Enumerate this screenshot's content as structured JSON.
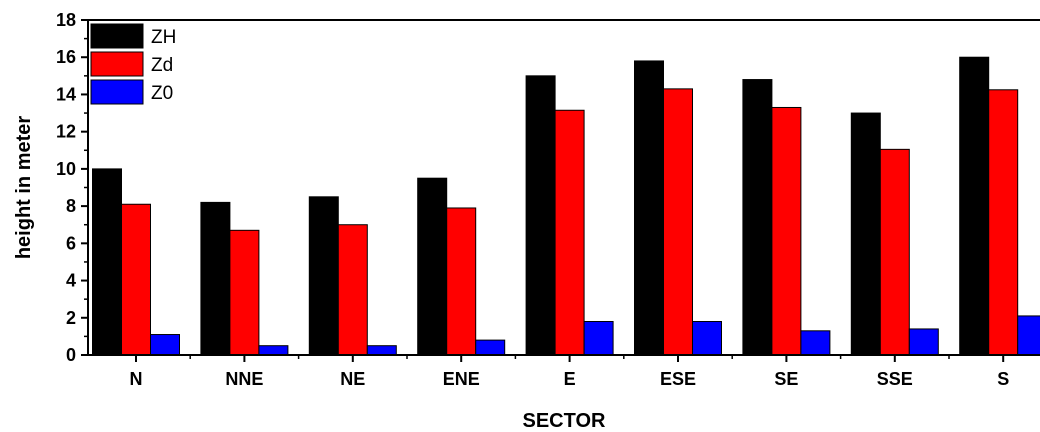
{
  "chart_data": {
    "type": "bar",
    "title": "",
    "xlabel": "SECTOR",
    "ylabel": "height in meter",
    "categories": [
      "N",
      "NNE",
      "NE",
      "ENE",
      "E",
      "ESE",
      "SE",
      "SSE",
      "S"
    ],
    "series": [
      {
        "name": "ZH",
        "color": "#000000",
        "values": [
          10.0,
          8.2,
          8.5,
          9.5,
          15.0,
          15.8,
          14.8,
          13.0,
          16.0
        ]
      },
      {
        "name": "Zd",
        "color": "#ff0000",
        "values": [
          8.1,
          6.7,
          7.0,
          7.9,
          13.15,
          14.3,
          13.3,
          11.05,
          14.25
        ]
      },
      {
        "name": "Z0",
        "color": "#0000ff",
        "values": [
          1.1,
          0.5,
          0.5,
          0.8,
          1.8,
          1.8,
          1.3,
          1.4,
          2.1
        ]
      }
    ],
    "ylim": [
      0,
      18
    ],
    "yticks": [
      0,
      2,
      4,
      6,
      8,
      10,
      12,
      14,
      16,
      18
    ],
    "grid": false,
    "legend_position": "top-left"
  }
}
